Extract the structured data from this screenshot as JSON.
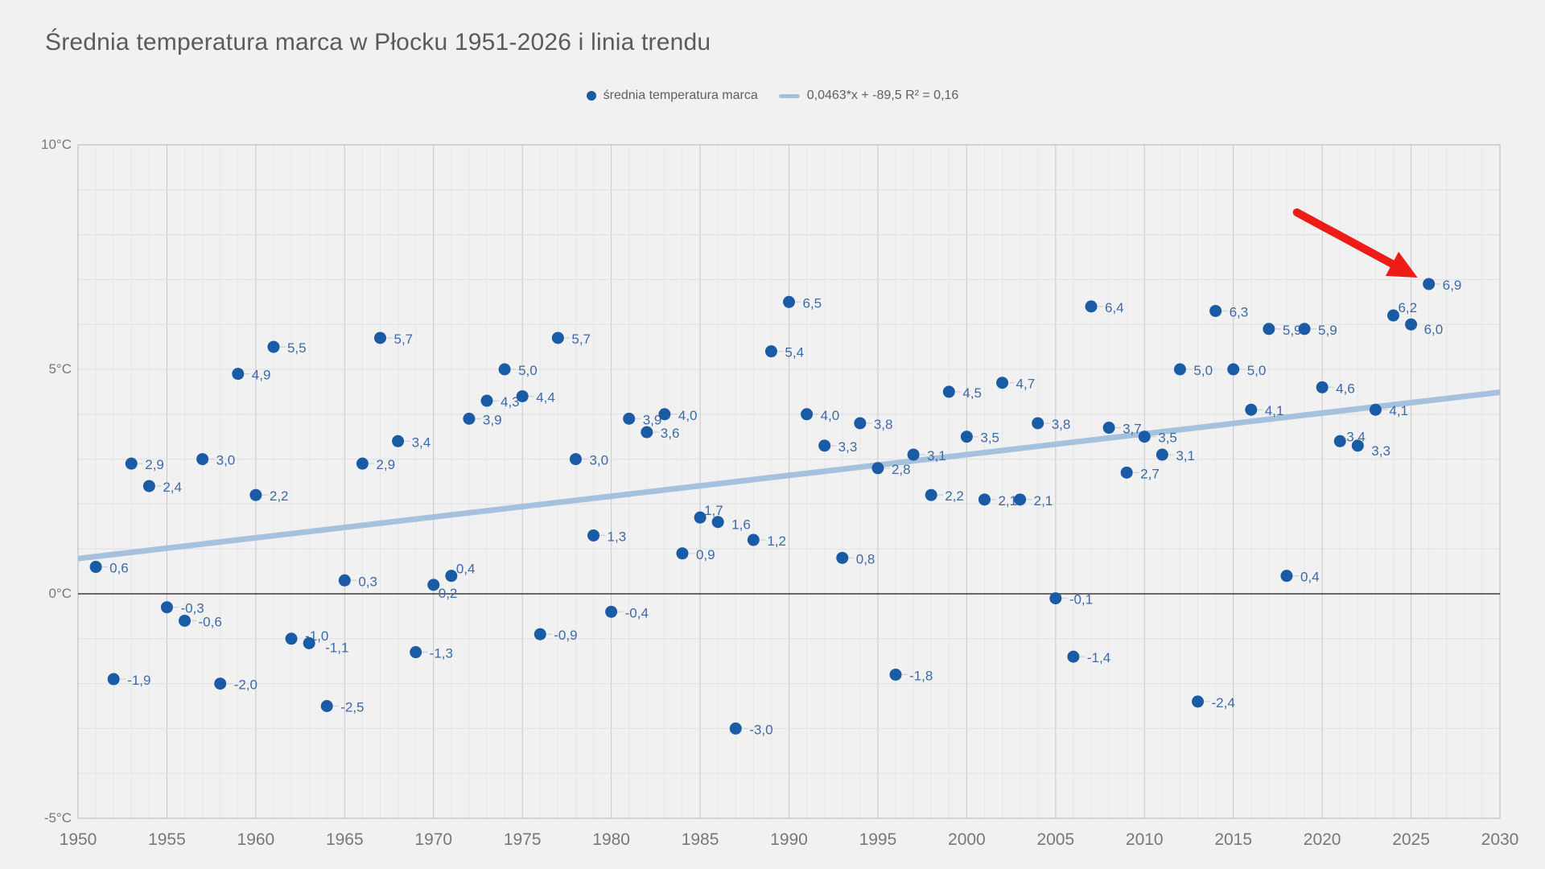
{
  "title": "Średnia temperatura marca w Płocku 1951-2026 i linia trendu",
  "legend": {
    "series_label": "średnia temperatura marca",
    "trend_label": "0,0463*x + -89,5 R² = 0,16"
  },
  "colors": {
    "background": "#f1f1f2",
    "point": "#1a5ba6",
    "point_label": "#3c6aa5",
    "trend": "#a6c1de",
    "arrow": "#ed1c16",
    "title_text": "#5b5b5b",
    "axis_text": "#787878",
    "grid_minor": "#e6e6e8",
    "grid_major": "#c6c6c8",
    "grid_horizontal": "#e0e0e2",
    "zero_line": "#3c3c3c",
    "plot_border": "#b5b5b7"
  },
  "chart_data": {
    "type": "scatter",
    "title": "Średnia temperatura marca w Płocku 1951-2026 i linia trendu",
    "series_name": "średnia temperatura marca",
    "x_axis": {
      "min": 1950,
      "max": 2030,
      "tick_step": 5,
      "tick_labels": [
        "1950",
        "1955",
        "1960",
        "1965",
        "1970",
        "1975",
        "1980",
        "1985",
        "1990",
        "1995",
        "2000",
        "2005",
        "2010",
        "2015",
        "2020",
        "2025",
        "2030"
      ]
    },
    "y_axis": {
      "min": -5,
      "max": 10,
      "unit": "°C",
      "grid_step": 1,
      "ticks": [
        {
          "value": 10,
          "label": "10°C"
        },
        {
          "value": 5,
          "label": "5°C"
        },
        {
          "value": 0,
          "label": "0°C"
        },
        {
          "value": -5,
          "label": "-5°C"
        }
      ]
    },
    "legend_position": "top-center",
    "grid": true,
    "points": [
      {
        "year": 1951,
        "value": 0.6
      },
      {
        "year": 1952,
        "value": -1.9
      },
      {
        "year": 1953,
        "value": 2.9
      },
      {
        "year": 1954,
        "value": 2.4
      },
      {
        "year": 1955,
        "value": -0.3
      },
      {
        "year": 1956,
        "value": -0.6
      },
      {
        "year": 1957,
        "value": 3.0
      },
      {
        "year": 1958,
        "value": -2.0
      },
      {
        "year": 1959,
        "value": 4.9
      },
      {
        "year": 1960,
        "value": 2.2
      },
      {
        "year": 1961,
        "value": 5.5
      },
      {
        "year": 1962,
        "value": -1.0
      },
      {
        "year": 1963,
        "value": -1.1
      },
      {
        "year": 1964,
        "value": -2.5
      },
      {
        "year": 1965,
        "value": 0.3
      },
      {
        "year": 1966,
        "value": 2.9
      },
      {
        "year": 1967,
        "value": 5.7
      },
      {
        "year": 1968,
        "value": 3.4
      },
      {
        "year": 1969,
        "value": -1.3
      },
      {
        "year": 1970,
        "value": 0.2
      },
      {
        "year": 1971,
        "value": 0.4
      },
      {
        "year": 1972,
        "value": 3.9
      },
      {
        "year": 1973,
        "value": 4.3
      },
      {
        "year": 1974,
        "value": 5.0
      },
      {
        "year": 1975,
        "value": 4.4
      },
      {
        "year": 1976,
        "value": -0.9
      },
      {
        "year": 1977,
        "value": 5.7
      },
      {
        "year": 1978,
        "value": 3.0
      },
      {
        "year": 1979,
        "value": 1.3
      },
      {
        "year": 1980,
        "value": -0.4
      },
      {
        "year": 1981,
        "value": 3.9
      },
      {
        "year": 1982,
        "value": 3.6
      },
      {
        "year": 1983,
        "value": 4.0
      },
      {
        "year": 1984,
        "value": 0.9
      },
      {
        "year": 1985,
        "value": 1.7
      },
      {
        "year": 1986,
        "value": 1.6
      },
      {
        "year": 1987,
        "value": -3.0
      },
      {
        "year": 1988,
        "value": 1.2
      },
      {
        "year": 1989,
        "value": 5.4
      },
      {
        "year": 1990,
        "value": 6.5
      },
      {
        "year": 1991,
        "value": 4.0
      },
      {
        "year": 1992,
        "value": 3.3
      },
      {
        "year": 1993,
        "value": 0.8
      },
      {
        "year": 1994,
        "value": 3.8
      },
      {
        "year": 1995,
        "value": 2.8
      },
      {
        "year": 1996,
        "value": -1.8
      },
      {
        "year": 1997,
        "value": 3.1
      },
      {
        "year": 1998,
        "value": 2.2
      },
      {
        "year": 1999,
        "value": 4.5
      },
      {
        "year": 2000,
        "value": 3.5
      },
      {
        "year": 2001,
        "value": 2.1
      },
      {
        "year": 2002,
        "value": 4.7
      },
      {
        "year": 2003,
        "value": 2.1
      },
      {
        "year": 2004,
        "value": 3.8
      },
      {
        "year": 2005,
        "value": -0.1
      },
      {
        "year": 2006,
        "value": -1.4
      },
      {
        "year": 2007,
        "value": 6.4
      },
      {
        "year": 2008,
        "value": 3.7
      },
      {
        "year": 2009,
        "value": 2.7
      },
      {
        "year": 2010,
        "value": 3.5
      },
      {
        "year": 2011,
        "value": 3.1
      },
      {
        "year": 2012,
        "value": 5.0
      },
      {
        "year": 2013,
        "value": -2.4
      },
      {
        "year": 2014,
        "value": 6.3
      },
      {
        "year": 2015,
        "value": 5.0
      },
      {
        "year": 2016,
        "value": 4.1
      },
      {
        "year": 2017,
        "value": 5.9
      },
      {
        "year": 2018,
        "value": 0.4
      },
      {
        "year": 2019,
        "value": 5.9
      },
      {
        "year": 2020,
        "value": 4.6
      },
      {
        "year": 2021,
        "value": 3.4
      },
      {
        "year": 2022,
        "value": 3.3
      },
      {
        "year": 2023,
        "value": 4.1
      },
      {
        "year": 2024,
        "value": 6.2
      },
      {
        "year": 2025,
        "value": 6.0
      },
      {
        "year": 2026,
        "value": 6.9
      }
    ],
    "trend": {
      "slope": 0.0463,
      "intercept": -89.5,
      "r2": 0.16,
      "label": "0,0463*x + -89,5 R² = 0,16"
    },
    "annotation": {
      "type": "arrow",
      "points_to_year": 2026,
      "points_to_value": 6.9
    }
  }
}
